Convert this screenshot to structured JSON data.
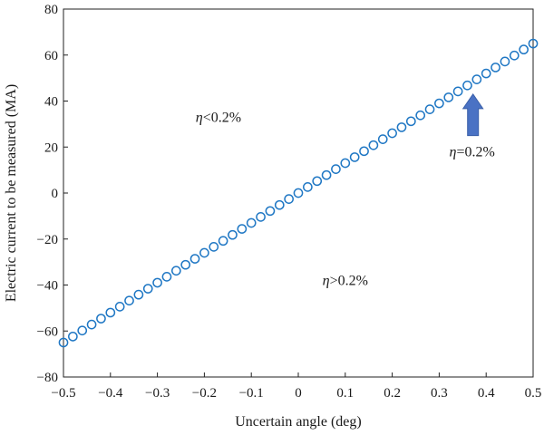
{
  "chart_data": {
    "type": "scatter",
    "xlabel": "Uncertain angle (deg)",
    "ylabel": "Electric current to be measured (MA)",
    "xlim": [
      -0.5,
      0.5
    ],
    "ylim": [
      -80,
      80
    ],
    "x_ticks": [
      -0.5,
      -0.4,
      -0.3,
      -0.2,
      -0.1,
      0,
      0.1,
      0.2,
      0.3,
      0.4,
      0.5
    ],
    "x_tick_labels": [
      "−0.5",
      "−0.4",
      "−0.3",
      "−0.2",
      "−0.1",
      "0",
      "0.1",
      "0.2",
      "0.3",
      "0.4",
      "0.5"
    ],
    "y_ticks": [
      -80,
      -60,
      -40,
      -20,
      0,
      20,
      40,
      60,
      80
    ],
    "y_tick_labels": [
      "−80",
      "−60",
      "−40",
      "−20",
      "0",
      "20",
      "40",
      "60",
      "80"
    ],
    "grid": false,
    "marker": "open-circle",
    "marker_color": "#1f77c4",
    "series": [
      {
        "x": [
          -0.5,
          -0.48,
          -0.46,
          -0.44,
          -0.42,
          -0.4,
          -0.38,
          -0.36,
          -0.34,
          -0.32,
          -0.3,
          -0.28,
          -0.26,
          -0.24,
          -0.22,
          -0.2,
          -0.18,
          -0.16,
          -0.14,
          -0.12,
          -0.1,
          -0.08,
          -0.06,
          -0.04,
          -0.02,
          0,
          0.02,
          0.04,
          0.06,
          0.08,
          0.1,
          0.12,
          0.14,
          0.16,
          0.18,
          0.2,
          0.22,
          0.24,
          0.26,
          0.28,
          0.3,
          0.32,
          0.34,
          0.36,
          0.38,
          0.4,
          0.42,
          0.44,
          0.46,
          0.48,
          0.5
        ],
        "y": [
          -65,
          -62.4,
          -59.8,
          -57.2,
          -54.6,
          -52,
          -49.4,
          -46.8,
          -44.2,
          -41.6,
          -39,
          -36.4,
          -33.8,
          -31.2,
          -28.6,
          -26,
          -23.4,
          -20.8,
          -18.2,
          -15.6,
          -13,
          -10.4,
          -7.8,
          -5.2,
          -2.6,
          0,
          2.6,
          5.2,
          7.8,
          10.4,
          13,
          15.6,
          18.2,
          20.8,
          23.4,
          26,
          28.6,
          31.2,
          33.8,
          36.4,
          39,
          41.6,
          44.2,
          46.8,
          49.4,
          52,
          54.6,
          57.2,
          59.8,
          62.4,
          65
        ]
      }
    ],
    "annotations": [
      {
        "eta": "η",
        "rest": "<0.2%",
        "x": -0.17,
        "y": 31
      },
      {
        "eta": "η",
        "rest": ">0.2%",
        "x": 0.1,
        "y": -40
      },
      {
        "eta": "η",
        "rest": "=0.2%",
        "x": 0.37,
        "y": 16
      }
    ],
    "arrow": {
      "color": "#4a72c4",
      "from": [
        0.372,
        25
      ],
      "to": [
        0.372,
        43
      ]
    }
  }
}
